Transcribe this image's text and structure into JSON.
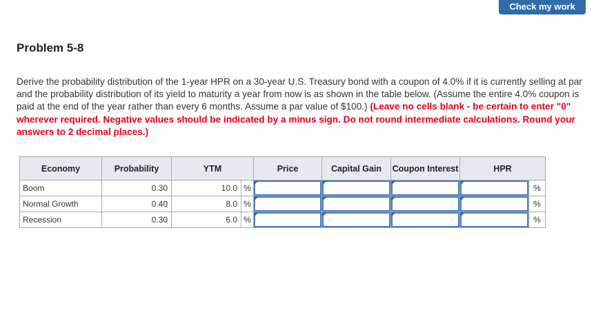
{
  "header": {
    "check_label": "Check my work"
  },
  "problem": {
    "title": "Problem 5-8",
    "text": "Derive the probability distribution of the 1-year HPR on a 30-year U.S. Treasury bond with a coupon of 4.0% if it is currently selling at par and the probability distribution of its yield to maturity a year from now is as shown in the table below. (Assume the entire 4.0% coupon is paid at the end of the year rather than every 6 months. Assume a par value of $100.) ",
    "instruction": "(Leave no cells blank - be certain to enter \"0\" wherever required. Negative values should be indicated by a minus sign. Do not round intermediate calculations. Round your answers to 2 decimal places.)"
  },
  "table": {
    "headers": [
      "Economy",
      "Probability",
      "YTM",
      "Price",
      "Capital Gain",
      "Coupon Interest",
      "HPR"
    ],
    "unit": "%",
    "rows": [
      {
        "economy": "Boom",
        "probability": "0.30",
        "ytm": "10.0"
      },
      {
        "economy": "Normal Growth",
        "probability": "0.40",
        "ytm": "8.0"
      },
      {
        "economy": "Recession",
        "probability": "0.30",
        "ytm": "6.0"
      }
    ]
  },
  "colors": {
    "accent": "#2f6ca8",
    "instruction": "#e5001b",
    "header_bg": "#e6eaf0"
  }
}
